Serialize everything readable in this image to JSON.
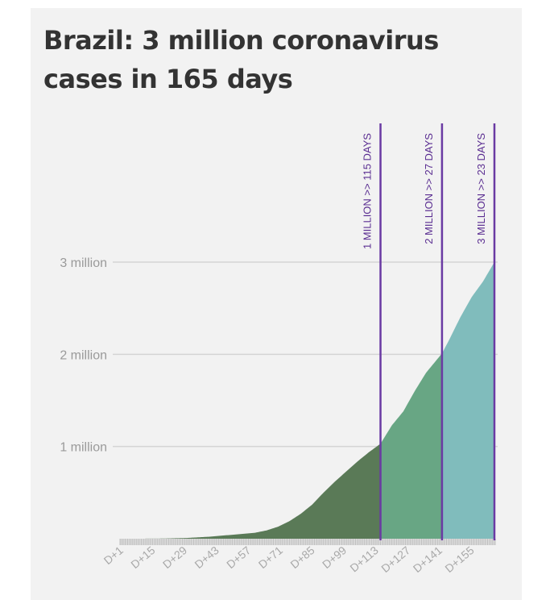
{
  "chart_data": {
    "type": "area",
    "title": "Brazil: 3 million coronavirus cases in 165 days",
    "xlabel": "",
    "ylabel": "",
    "xlim": [
      1,
      165
    ],
    "ylim": [
      0,
      3000000
    ],
    "y_ticks": [
      {
        "value": 1000000,
        "label": "1 million"
      },
      {
        "value": 2000000,
        "label": "2 million"
      },
      {
        "value": 3000000,
        "label": "3 million"
      }
    ],
    "x_ticks": [
      "D+1",
      "D+15",
      "D+29",
      "D+43",
      "D+57",
      "D+71",
      "D+85",
      "D+99",
      "D+113",
      "D+127",
      "D+141",
      "D+155"
    ],
    "x_tick_days": [
      1,
      15,
      29,
      43,
      57,
      71,
      85,
      99,
      113,
      127,
      141,
      155
    ],
    "grid": "horizontal",
    "series": [
      {
        "x": [
          1,
          10,
          20,
          30,
          40,
          50,
          60,
          65,
          70,
          75,
          80,
          85,
          90,
          95,
          100,
          105,
          110,
          115,
          120,
          125,
          130,
          135,
          140,
          142,
          145,
          150,
          155,
          160,
          165
        ],
        "values": [
          0,
          200,
          2000,
          8000,
          22000,
          43000,
          65000,
          90000,
          130000,
          190000,
          270000,
          370000,
          500000,
          620000,
          730000,
          840000,
          940000,
          1030000,
          1230000,
          1380000,
          1600000,
          1800000,
          1950000,
          2010000,
          2150000,
          2400000,
          2620000,
          2790000,
          3000000
        ]
      }
    ],
    "segments": [
      {
        "from": 1,
        "to": 115,
        "color": "#5a7a57"
      },
      {
        "from": 115,
        "to": 142,
        "color": "#68a684"
      },
      {
        "from": 142,
        "to": 165,
        "color": "#80bcbc"
      }
    ],
    "milestones": [
      {
        "day": 115,
        "label": "1 MILLION >> 115 DAYS"
      },
      {
        "day": 142,
        "label": "2 MILLION >> 27 DAYS"
      },
      {
        "day": 165,
        "label": "3 MILLION >> 23 DAYS"
      }
    ],
    "milestone_color": "#6a3aa3"
  }
}
